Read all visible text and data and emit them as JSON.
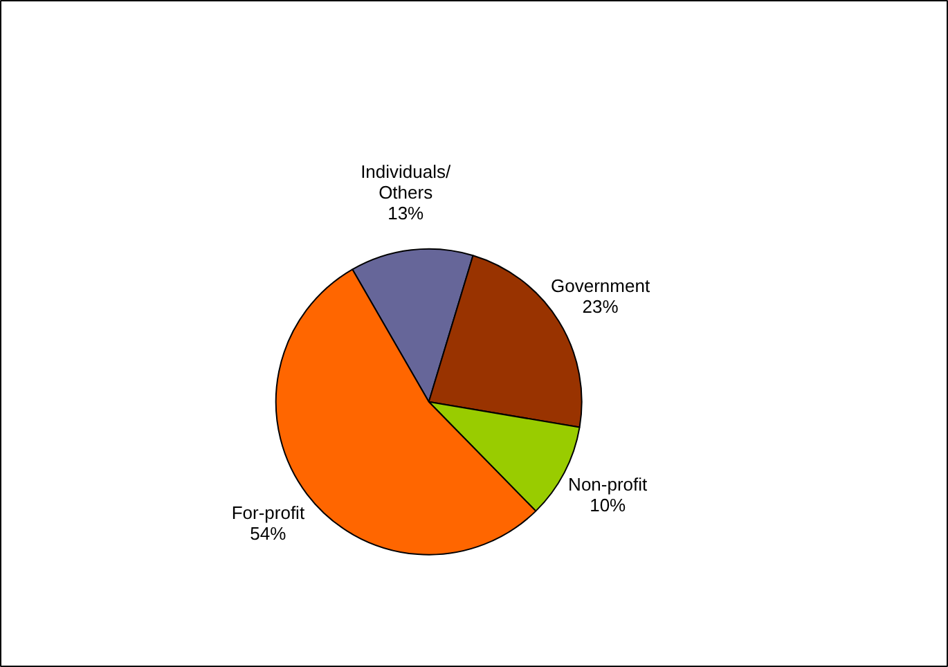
{
  "chart_data": {
    "type": "pie",
    "categories": [
      "Individuals/\nOthers",
      "Government",
      "Non-profit",
      "For-profit"
    ],
    "values": [
      13,
      23,
      10,
      54
    ],
    "value_labels": [
      "13%",
      "23%",
      "10%",
      "54%"
    ],
    "colors": [
      "#666699",
      "#993300",
      "#99cc00",
      "#ff6600"
    ]
  }
}
